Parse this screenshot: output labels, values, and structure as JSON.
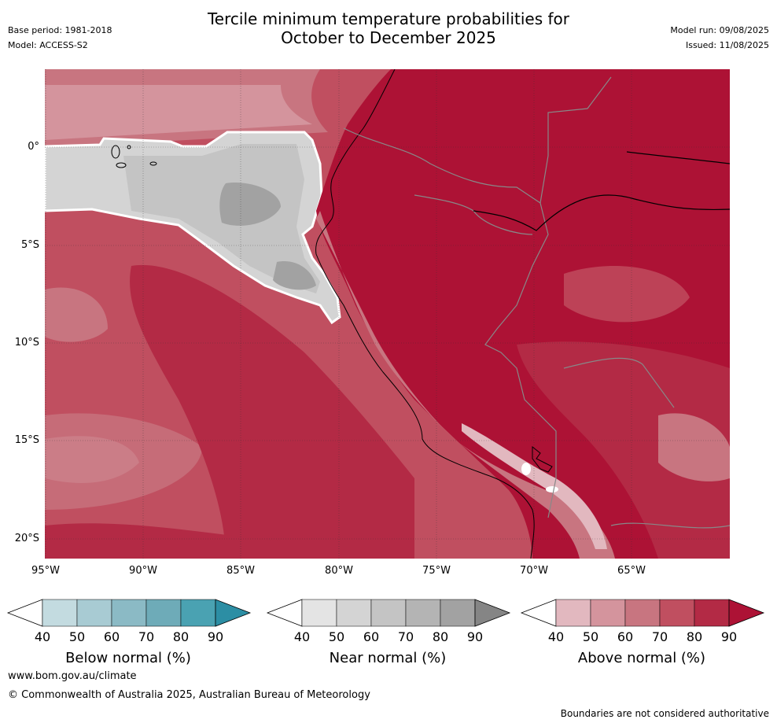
{
  "header": {
    "title_line1": "Tercile minimum temperature probabilities for",
    "title_line2": "October to December 2025",
    "base_period": "Base period: 1981-2018",
    "model": "Model: ACCESS-S2",
    "model_run": "Model run: 09/08/2025",
    "issued": "Issued: 11/08/2025"
  },
  "axes": {
    "lat_ticks": [
      "0°",
      "5°S",
      "10°S",
      "15°S",
      "20°S"
    ],
    "lon_ticks": [
      "95°W",
      "90°W",
      "85°W",
      "80°W",
      "75°W",
      "70°W",
      "65°W"
    ]
  },
  "legend": {
    "below": {
      "title": "Below normal (%)",
      "ticks": [
        "40",
        "50",
        "60",
        "70",
        "80",
        "90"
      ],
      "colors": [
        "#ffffff",
        "#c3dbe0",
        "#a8cbd3",
        "#8bbac5",
        "#6eabb8",
        "#4aa2b2",
        "#2c8ea4"
      ]
    },
    "near": {
      "title": "Near normal (%)",
      "ticks": [
        "40",
        "50",
        "60",
        "70",
        "80",
        "90"
      ],
      "colors": [
        "#ffffff",
        "#e4e4e4",
        "#d4d4d4",
        "#c4c4c4",
        "#b4b4b4",
        "#a2a2a2",
        "#858585"
      ]
    },
    "above": {
      "title": "Above normal (%)",
      "ticks": [
        "40",
        "50",
        "60",
        "70",
        "80",
        "90"
      ],
      "colors": [
        "#ffffff",
        "#e2b8bf",
        "#d4949d",
        "#c87580",
        "#c04f60",
        "#b32a45",
        "#ad1235"
      ]
    }
  },
  "footer": {
    "url": "www.bom.gov.au/climate",
    "copyright": "© Commonwealth of Australia 2025, Australian Bureau of Meteorology",
    "disclaimer": "Boundaries are not considered authoritative"
  }
}
